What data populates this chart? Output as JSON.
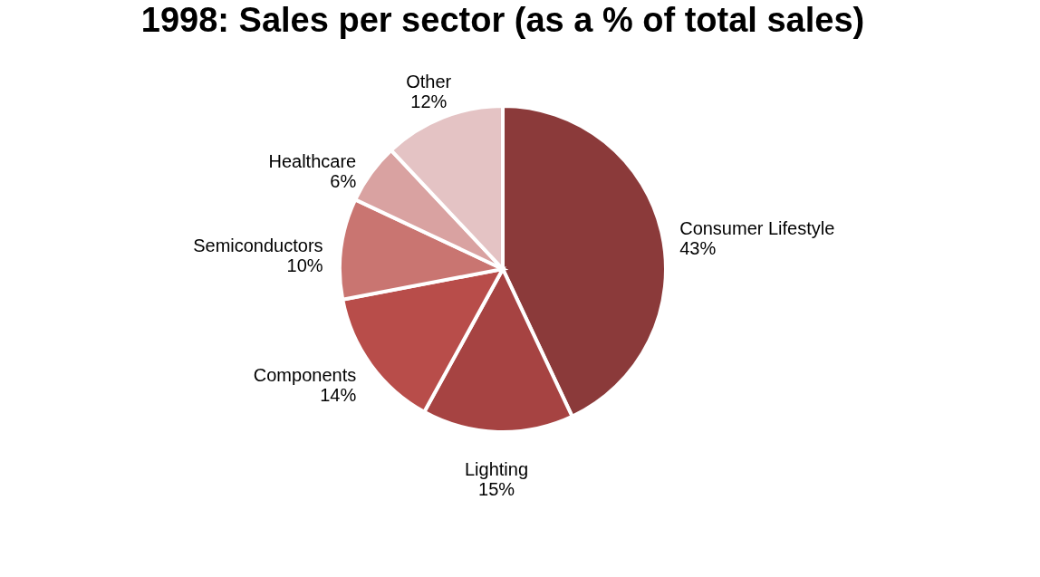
{
  "chart_data": {
    "type": "pie",
    "title": "1998: Sales per sector (as a % of total sales)",
    "categories": [
      "Consumer Lifestyle",
      "Lighting",
      "Components",
      "Semiconductors",
      "Healthcare",
      "Other"
    ],
    "values": [
      43,
      15,
      14,
      10,
      6,
      12
    ],
    "value_labels": [
      "43%",
      "15%",
      "14%",
      "10%",
      "6%",
      "12%"
    ],
    "colors": [
      "#8b3a3a",
      "#a64342",
      "#b84d4a",
      "#c97571",
      "#d9a2a1",
      "#e4c3c4"
    ],
    "legend": false
  }
}
